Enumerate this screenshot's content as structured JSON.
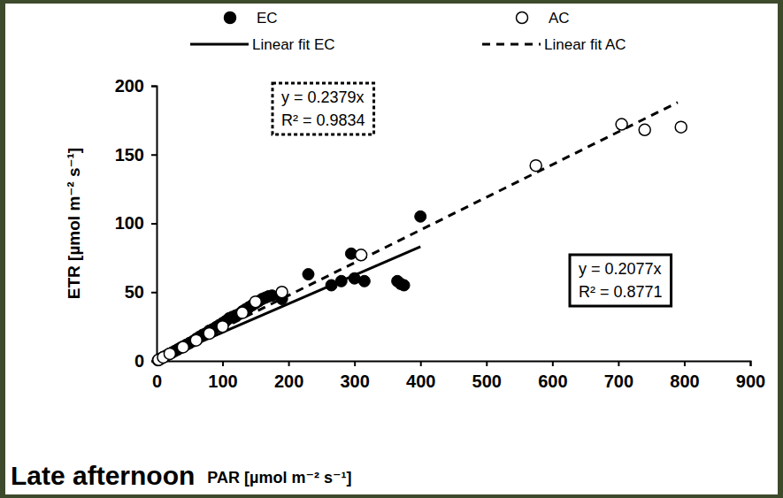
{
  "chart_data": {
    "type": "scatter",
    "title": "Late afternoon",
    "x_label": "PAR [µmol m⁻² s⁻¹]",
    "y_label": "ETR [µmol m⁻² s⁻¹]",
    "xlim": [
      0,
      900
    ],
    "ylim": [
      0,
      200
    ],
    "xticks": [
      0,
      100,
      200,
      300,
      400,
      500,
      600,
      700,
      800,
      900
    ],
    "yticks": [
      0,
      50,
      100,
      150,
      200
    ],
    "grid": false,
    "legend": "top",
    "series": [
      {
        "name": "EC",
        "type": "scatter",
        "marker": "circle",
        "color": "#000000",
        "x": [
          2,
          5,
          8,
          10,
          13,
          16,
          20,
          24,
          28,
          32,
          36,
          40,
          45,
          50,
          55,
          60,
          65,
          70,
          75,
          80,
          85,
          90,
          95,
          100,
          105,
          110,
          115,
          120,
          125,
          130,
          135,
          140,
          145,
          150,
          155,
          160,
          165,
          170,
          175,
          190,
          230,
          265,
          280,
          295,
          300,
          315,
          365,
          370,
          375,
          400
        ],
        "values": [
          0.5,
          1.3,
          2,
          2.6,
          3.4,
          4.2,
          5.2,
          6.2,
          7.3,
          8.3,
          9.4,
          10.4,
          11.7,
          13,
          14.3,
          16,
          17.5,
          19,
          20,
          22,
          23,
          24.5,
          26,
          27.5,
          29,
          31,
          32,
          33,
          34,
          36,
          37.5,
          39,
          40.5,
          42,
          43.5,
          45,
          46,
          47,
          47.5,
          45,
          63,
          55,
          58,
          78,
          60,
          58,
          58,
          56,
          55,
          105
        ]
      },
      {
        "name": "AC",
        "type": "scatter",
        "marker": "open_circle",
        "color": "#000000",
        "x": [
          3,
          10,
          20,
          40,
          60,
          80,
          100,
          130,
          150,
          190,
          310,
          575,
          705,
          740,
          795
        ],
        "values": [
          0.8,
          2.6,
          5.2,
          10,
          15,
          20,
          25,
          35,
          43,
          50,
          77,
          142,
          172,
          168,
          170
        ]
      },
      {
        "name": "Linear fit EC",
        "type": "line",
        "line_style": "solid",
        "color": "#000000",
        "x": [
          0,
          400
        ],
        "values": [
          0,
          83.08
        ]
      },
      {
        "name": "Linear fit AC",
        "type": "line",
        "line_style": "dashed",
        "color": "#000000",
        "x": [
          0,
          790
        ],
        "values": [
          0,
          187.94
        ]
      }
    ],
    "annotations": [
      {
        "text": [
          "y = 0.2379x",
          "R² = 0.9834"
        ],
        "series": "Linear fit AC"
      },
      {
        "text": [
          "y = 0.2077x",
          "R² = 0.8771"
        ],
        "series": "Linear fit EC"
      }
    ]
  }
}
